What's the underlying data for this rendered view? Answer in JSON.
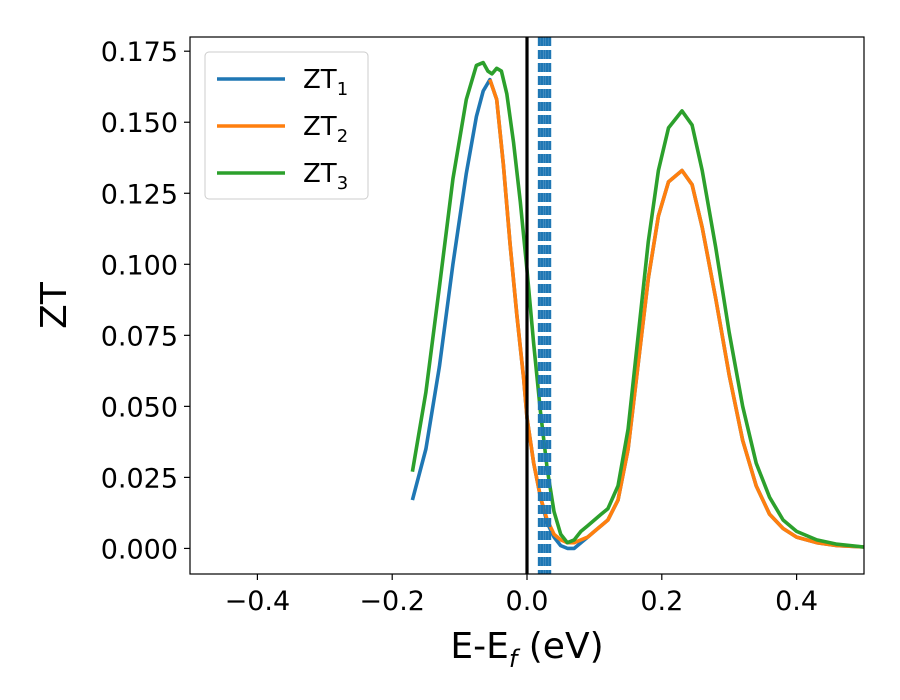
{
  "chart_data": {
    "type": "line",
    "xlabel": "E-E",
    "xlabel_sub": "f",
    "xlabel_unit": " (eV)",
    "ylabel": "ZT",
    "xlim": [
      -0.5,
      0.5
    ],
    "ylim": [
      -0.009,
      0.18
    ],
    "x_ticks": [
      -0.4,
      -0.2,
      0.0,
      0.2,
      0.4
    ],
    "x_tick_labels": [
      "−0.4",
      "−0.2",
      "0.0",
      "0.2",
      "0.4"
    ],
    "y_ticks": [
      0.0,
      0.025,
      0.05,
      0.075,
      0.1,
      0.125,
      0.15,
      0.175
    ],
    "y_tick_labels": [
      "0.000",
      "0.025",
      "0.050",
      "0.075",
      "0.100",
      "0.125",
      "0.150",
      "0.175"
    ],
    "legend_position": "upper-left",
    "grid": false,
    "series": [
      {
        "name": "ZT",
        "sub": "1",
        "color": "#1f77b4",
        "points": [
          [
            -0.17,
            0.017
          ],
          [
            -0.15,
            0.035
          ],
          [
            -0.13,
            0.064
          ],
          [
            -0.11,
            0.1
          ],
          [
            -0.09,
            0.132
          ],
          [
            -0.075,
            0.152
          ],
          [
            -0.065,
            0.161
          ],
          [
            -0.055,
            0.165
          ],
          [
            -0.045,
            0.158
          ],
          [
            -0.035,
            0.135
          ],
          [
            -0.025,
            0.107
          ],
          [
            -0.015,
            0.082
          ],
          [
            -0.005,
            0.06
          ],
          [
            0.0,
            0.046
          ],
          [
            0.01,
            0.03
          ],
          [
            0.02,
            0.018
          ],
          [
            0.03,
            0.009
          ],
          [
            0.04,
            0.004
          ],
          [
            0.05,
            0.001
          ],
          [
            0.06,
            0.0
          ],
          [
            0.07,
            0.0
          ],
          [
            0.08,
            0.002
          ],
          [
            0.09,
            0.004
          ],
          [
            0.1,
            0.006
          ],
          [
            0.11,
            0.008
          ],
          [
            0.12,
            0.01
          ],
          [
            0.135,
            0.017
          ],
          [
            0.15,
            0.035
          ],
          [
            0.165,
            0.065
          ],
          [
            0.18,
            0.095
          ],
          [
            0.195,
            0.117
          ],
          [
            0.21,
            0.129
          ],
          [
            0.23,
            0.133
          ],
          [
            0.245,
            0.128
          ],
          [
            0.26,
            0.113
          ],
          [
            0.28,
            0.088
          ],
          [
            0.3,
            0.061
          ],
          [
            0.32,
            0.038
          ],
          [
            0.34,
            0.022
          ],
          [
            0.36,
            0.012
          ],
          [
            0.38,
            0.007
          ],
          [
            0.4,
            0.004
          ],
          [
            0.43,
            0.002
          ],
          [
            0.46,
            0.001
          ],
          [
            0.5,
            0.0005
          ]
        ]
      },
      {
        "name": "ZT",
        "sub": "2",
        "color": "#ff7f0e",
        "points": [
          [
            -0.055,
            0.165
          ],
          [
            -0.045,
            0.158
          ],
          [
            -0.035,
            0.135
          ],
          [
            -0.025,
            0.107
          ],
          [
            -0.015,
            0.082
          ],
          [
            -0.005,
            0.06
          ],
          [
            0.0,
            0.046
          ],
          [
            0.01,
            0.03
          ],
          [
            0.02,
            0.018
          ],
          [
            0.03,
            0.01
          ],
          [
            0.04,
            0.005
          ],
          [
            0.05,
            0.003
          ],
          [
            0.06,
            0.002
          ],
          [
            0.07,
            0.002
          ],
          [
            0.08,
            0.003
          ],
          [
            0.09,
            0.004
          ],
          [
            0.1,
            0.006
          ],
          [
            0.11,
            0.008
          ],
          [
            0.12,
            0.01
          ],
          [
            0.135,
            0.017
          ],
          [
            0.15,
            0.035
          ],
          [
            0.165,
            0.065
          ],
          [
            0.18,
            0.095
          ],
          [
            0.195,
            0.117
          ],
          [
            0.21,
            0.129
          ],
          [
            0.23,
            0.133
          ],
          [
            0.245,
            0.128
          ],
          [
            0.26,
            0.113
          ],
          [
            0.28,
            0.088
          ],
          [
            0.3,
            0.061
          ],
          [
            0.32,
            0.038
          ],
          [
            0.34,
            0.022
          ],
          [
            0.36,
            0.012
          ],
          [
            0.38,
            0.007
          ],
          [
            0.4,
            0.004
          ],
          [
            0.43,
            0.002
          ],
          [
            0.46,
            0.001
          ],
          [
            0.5,
            0.0005
          ]
        ]
      },
      {
        "name": "ZT",
        "sub": "3",
        "color": "#2ca02c",
        "points": [
          [
            -0.17,
            0.027
          ],
          [
            -0.15,
            0.055
          ],
          [
            -0.13,
            0.092
          ],
          [
            -0.11,
            0.13
          ],
          [
            -0.09,
            0.158
          ],
          [
            -0.075,
            0.17
          ],
          [
            -0.065,
            0.171
          ],
          [
            -0.058,
            0.168
          ],
          [
            -0.052,
            0.167
          ],
          [
            -0.045,
            0.169
          ],
          [
            -0.038,
            0.168
          ],
          [
            -0.03,
            0.16
          ],
          [
            -0.02,
            0.143
          ],
          [
            -0.01,
            0.122
          ],
          [
            0.0,
            0.098
          ],
          [
            0.01,
            0.072
          ],
          [
            0.02,
            0.048
          ],
          [
            0.03,
            0.028
          ],
          [
            0.04,
            0.013
          ],
          [
            0.05,
            0.005
          ],
          [
            0.06,
            0.002
          ],
          [
            0.07,
            0.003
          ],
          [
            0.08,
            0.006
          ],
          [
            0.09,
            0.008
          ],
          [
            0.1,
            0.01
          ],
          [
            0.11,
            0.012
          ],
          [
            0.12,
            0.014
          ],
          [
            0.135,
            0.022
          ],
          [
            0.15,
            0.042
          ],
          [
            0.165,
            0.075
          ],
          [
            0.18,
            0.108
          ],
          [
            0.195,
            0.133
          ],
          [
            0.21,
            0.148
          ],
          [
            0.23,
            0.154
          ],
          [
            0.245,
            0.149
          ],
          [
            0.26,
            0.133
          ],
          [
            0.28,
            0.106
          ],
          [
            0.3,
            0.076
          ],
          [
            0.32,
            0.05
          ],
          [
            0.34,
            0.03
          ],
          [
            0.36,
            0.018
          ],
          [
            0.38,
            0.01
          ],
          [
            0.4,
            0.006
          ],
          [
            0.43,
            0.003
          ],
          [
            0.46,
            0.0015
          ],
          [
            0.5,
            0.0005
          ]
        ]
      }
    ],
    "reference_lines": [
      {
        "x": 0.0,
        "color": "#000000",
        "style": "solid"
      }
    ],
    "dashed_lines": {
      "x": [
        0.018,
        0.022,
        0.026,
        0.03,
        0.034
      ],
      "color": "#1f77b4",
      "style": "dashed"
    }
  }
}
